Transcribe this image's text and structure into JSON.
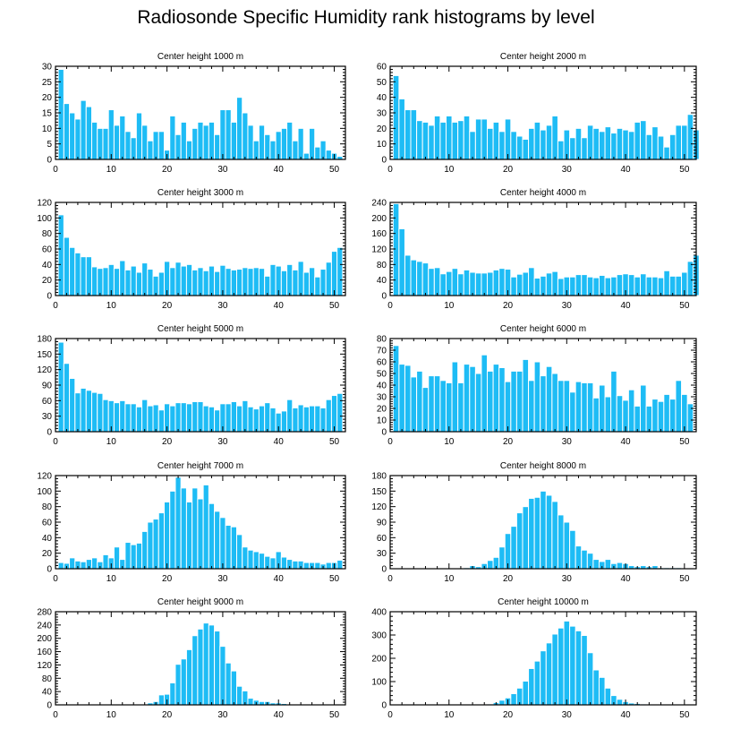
{
  "title": "Radiosonde Specific Humidity rank histograms by level",
  "colors": {
    "bar": "#1ebcf5",
    "bar_edge": "#ffffff",
    "axis": "#000000"
  },
  "chart_data": [
    {
      "type": "bar",
      "title": "Center height 1000 m",
      "xlim": [
        0,
        52
      ],
      "xticks": [
        0,
        10,
        20,
        30,
        40,
        50
      ],
      "ylim": [
        0,
        30
      ],
      "yticks": [
        0,
        5,
        10,
        15,
        20,
        25,
        30
      ],
      "values": [
        29,
        18,
        15,
        13,
        19,
        17,
        12,
        10,
        10,
        16,
        11,
        14,
        9,
        7,
        15,
        11,
        6,
        9,
        9,
        3,
        14,
        8,
        12,
        6,
        10,
        12,
        11,
        12,
        8,
        16,
        16,
        12,
        20,
        15,
        11,
        6,
        11,
        8,
        6,
        9,
        10,
        12,
        6,
        10,
        2,
        10,
        4,
        6,
        3,
        2,
        1
      ]
    },
    {
      "type": "bar",
      "title": "Center height 2000 m",
      "xlim": [
        0,
        52
      ],
      "xticks": [
        0,
        10,
        20,
        30,
        40,
        50
      ],
      "ylim": [
        0,
        60
      ],
      "yticks": [
        0,
        10,
        20,
        30,
        40,
        50,
        60
      ],
      "values": [
        54,
        39,
        32,
        32,
        25,
        24,
        22,
        28,
        24,
        28,
        24,
        25,
        28,
        18,
        26,
        26,
        20,
        24,
        18,
        26,
        18,
        15,
        13,
        20,
        24,
        19,
        22,
        28,
        12,
        19,
        14,
        20,
        14,
        22,
        20,
        18,
        21,
        17,
        20,
        19,
        18,
        24,
        25,
        16,
        21,
        15,
        8,
        16,
        22,
        22,
        29,
        19
      ]
    },
    {
      "type": "bar",
      "title": "Center height 3000 m",
      "xlim": [
        0,
        52
      ],
      "xticks": [
        0,
        10,
        20,
        30,
        40,
        50
      ],
      "ylim": [
        0,
        120
      ],
      "yticks": [
        0,
        20,
        40,
        60,
        80,
        100,
        120
      ],
      "values": [
        104,
        75,
        62,
        55,
        50,
        50,
        37,
        35,
        36,
        40,
        35,
        45,
        33,
        38,
        30,
        42,
        34,
        25,
        30,
        44,
        36,
        43,
        38,
        40,
        33,
        36,
        32,
        38,
        31,
        39,
        35,
        33,
        34,
        36,
        35,
        36,
        35,
        25,
        40,
        38,
        32,
        40,
        33,
        44,
        30,
        36,
        24,
        34,
        43,
        57,
        62
      ]
    },
    {
      "type": "bar",
      "title": "Center height 4000 m",
      "xlim": [
        0,
        52
      ],
      "xticks": [
        0,
        10,
        20,
        30,
        40,
        50
      ],
      "ylim": [
        0,
        240
      ],
      "yticks": [
        0,
        40,
        80,
        120,
        160,
        200,
        240
      ],
      "values": [
        237,
        172,
        104,
        92,
        88,
        84,
        70,
        72,
        56,
        62,
        70,
        56,
        66,
        60,
        58,
        58,
        60,
        66,
        70,
        68,
        48,
        55,
        60,
        72,
        45,
        50,
        58,
        62,
        44,
        48,
        48,
        54,
        54,
        48,
        46,
        52,
        46,
        48,
        54,
        56,
        54,
        48,
        56,
        48,
        48,
        46,
        64,
        50,
        50,
        60,
        88,
        104
      ]
    },
    {
      "type": "bar",
      "title": "Center height 5000 m",
      "xlim": [
        0,
        52
      ],
      "xticks": [
        0,
        10,
        20,
        30,
        40,
        50
      ],
      "ylim": [
        0,
        180
      ],
      "yticks": [
        0,
        30,
        60,
        90,
        120,
        150,
        180
      ],
      "values": [
        173,
        132,
        103,
        75,
        84,
        80,
        76,
        74,
        62,
        60,
        56,
        60,
        54,
        54,
        48,
        62,
        50,
        52,
        42,
        54,
        50,
        56,
        56,
        54,
        58,
        58,
        50,
        48,
        42,
        54,
        54,
        58,
        50,
        60,
        48,
        44,
        50,
        56,
        46,
        36,
        40,
        62,
        46,
        52,
        48,
        50,
        50,
        46,
        62,
        70,
        74
      ]
    },
    {
      "type": "bar",
      "title": "Center height 6000 m",
      "xlim": [
        0,
        52
      ],
      "xticks": [
        0,
        10,
        20,
        30,
        40,
        50
      ],
      "ylim": [
        0,
        80
      ],
      "yticks": [
        0,
        10,
        20,
        30,
        40,
        50,
        60,
        70,
        80
      ],
      "values": [
        74,
        58,
        57,
        47,
        52,
        38,
        48,
        48,
        44,
        42,
        60,
        42,
        58,
        56,
        50,
        66,
        52,
        58,
        55,
        43,
        52,
        52,
        62,
        44,
        60,
        48,
        56,
        50,
        44,
        44,
        34,
        43,
        42,
        42,
        29,
        40,
        30,
        52,
        31,
        27,
        36,
        22,
        40,
        22,
        28,
        26,
        32,
        28,
        44,
        32,
        24
      ]
    },
    {
      "type": "bar",
      "title": "Center height 7000 m",
      "xlim": [
        0,
        52
      ],
      "xticks": [
        0,
        10,
        20,
        30,
        40,
        50
      ],
      "ylim": [
        0,
        120
      ],
      "yticks": [
        0,
        20,
        40,
        60,
        80,
        100,
        120
      ],
      "values": [
        8,
        7,
        14,
        10,
        9,
        12,
        14,
        9,
        18,
        14,
        28,
        12,
        34,
        31,
        33,
        48,
        60,
        64,
        72,
        86,
        100,
        118,
        104,
        86,
        104,
        90,
        108,
        84,
        74,
        66,
        56,
        54,
        44,
        28,
        24,
        22,
        20,
        16,
        14,
        22,
        15,
        12,
        10,
        10,
        8,
        8,
        8,
        6,
        8,
        8,
        11
      ]
    },
    {
      "type": "bar",
      "title": "Center height 8000 m",
      "xlim": [
        0,
        52
      ],
      "xticks": [
        0,
        10,
        20,
        30,
        40,
        50
      ],
      "ylim": [
        0,
        180
      ],
      "yticks": [
        0,
        30,
        60,
        90,
        120,
        150,
        180
      ],
      "values": [
        1,
        1,
        1,
        1,
        1,
        1,
        1,
        1,
        1,
        1,
        1,
        1,
        2,
        6,
        4,
        10,
        16,
        22,
        42,
        68,
        82,
        108,
        120,
        136,
        138,
        150,
        142,
        130,
        104,
        90,
        74,
        44,
        36,
        30,
        18,
        14,
        18,
        10,
        12,
        10,
        6,
        4,
        6,
        4,
        6,
        2,
        2,
        2,
        2,
        1,
        1
      ]
    },
    {
      "type": "bar",
      "title": "Center height 9000 m",
      "xlim": [
        0,
        52
      ],
      "xticks": [
        0,
        10,
        20,
        30,
        40,
        50
      ],
      "ylim": [
        0,
        280
      ],
      "yticks": [
        0,
        40,
        80,
        120,
        160,
        200,
        240,
        280
      ],
      "values": [
        0,
        0,
        0,
        0,
        0,
        0,
        0,
        0,
        0,
        0,
        0,
        0,
        0,
        0,
        0,
        2,
        6,
        10,
        30,
        32,
        66,
        122,
        138,
        166,
        208,
        228,
        246,
        240,
        222,
        176,
        126,
        102,
        56,
        42,
        20,
        14,
        10,
        10,
        6,
        6,
        4,
        2,
        2,
        1,
        1,
        1,
        0,
        0,
        0,
        0,
        0
      ]
    },
    {
      "type": "bar",
      "title": "Center height 10000 m",
      "xlim": [
        0,
        52
      ],
      "xticks": [
        0,
        10,
        20,
        30,
        40,
        50
      ],
      "ylim": [
        0,
        400
      ],
      "yticks": [
        0,
        100,
        200,
        300,
        400
      ],
      "values": [
        0,
        0,
        0,
        0,
        0,
        0,
        0,
        0,
        0,
        0,
        0,
        0,
        0,
        0,
        0,
        0,
        4,
        10,
        20,
        30,
        48,
        72,
        102,
        156,
        188,
        232,
        266,
        304,
        330,
        360,
        338,
        318,
        298,
        224,
        150,
        118,
        72,
        40,
        24,
        14,
        8,
        6,
        4,
        2,
        2,
        1,
        0,
        0,
        0,
        0,
        0
      ]
    }
  ]
}
